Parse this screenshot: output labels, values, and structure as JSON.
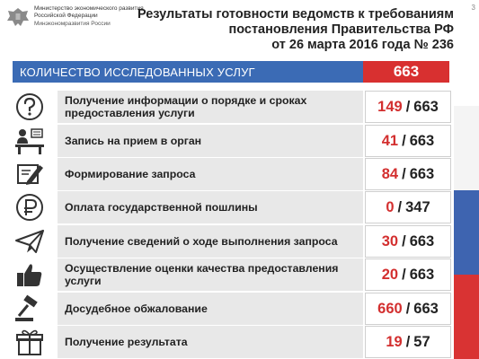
{
  "header": {
    "ministry_line1": "Министерство экономического развития",
    "ministry_line2": "Российской Федерации",
    "ministry_short": "Минэкономразвития России",
    "title_line1": "Результаты готовности ведомств к требованиям",
    "title_line2": "постановления Правительства РФ",
    "title_line3": "от 26 марта 2016 года № 236",
    "page_number": "3"
  },
  "total": {
    "label": "КОЛИЧЕСТВО ИССЛЕДОВАННЫХ УСЛУГ",
    "value": "663"
  },
  "rows": [
    {
      "label": "Получение информации о порядке и сроках предоставления услуги",
      "num": "149",
      "den": "663",
      "icon": "question-icon"
    },
    {
      "label": "Запись на прием в орган",
      "num": "41",
      "den": "663",
      "icon": "reception-desk-icon"
    },
    {
      "label": "Формирование запроса",
      "num": "84",
      "den": "663",
      "icon": "form-pen-icon"
    },
    {
      "label": "Оплата государственной пошлины",
      "num": "0",
      "den": "347",
      "icon": "ruble-icon"
    },
    {
      "label": "Получение сведений о ходе выполнения запроса",
      "num": "30",
      "den": "663",
      "icon": "paper-plane-icon"
    },
    {
      "label": "Осуществление оценки качества предоставления услуги",
      "num": "20",
      "den": "663",
      "icon": "thumbs-up-icon"
    },
    {
      "label": "Досудебное обжалование",
      "num": "660",
      "den": "663",
      "icon": "gavel-icon"
    },
    {
      "label": "Получение результата",
      "num": "19",
      "den": "57",
      "icon": "gift-box-icon"
    }
  ],
  "colors": {
    "accent_blue": "#3b6bb5",
    "accent_red": "#d83030",
    "row_bg": "#e8e8e8"
  }
}
